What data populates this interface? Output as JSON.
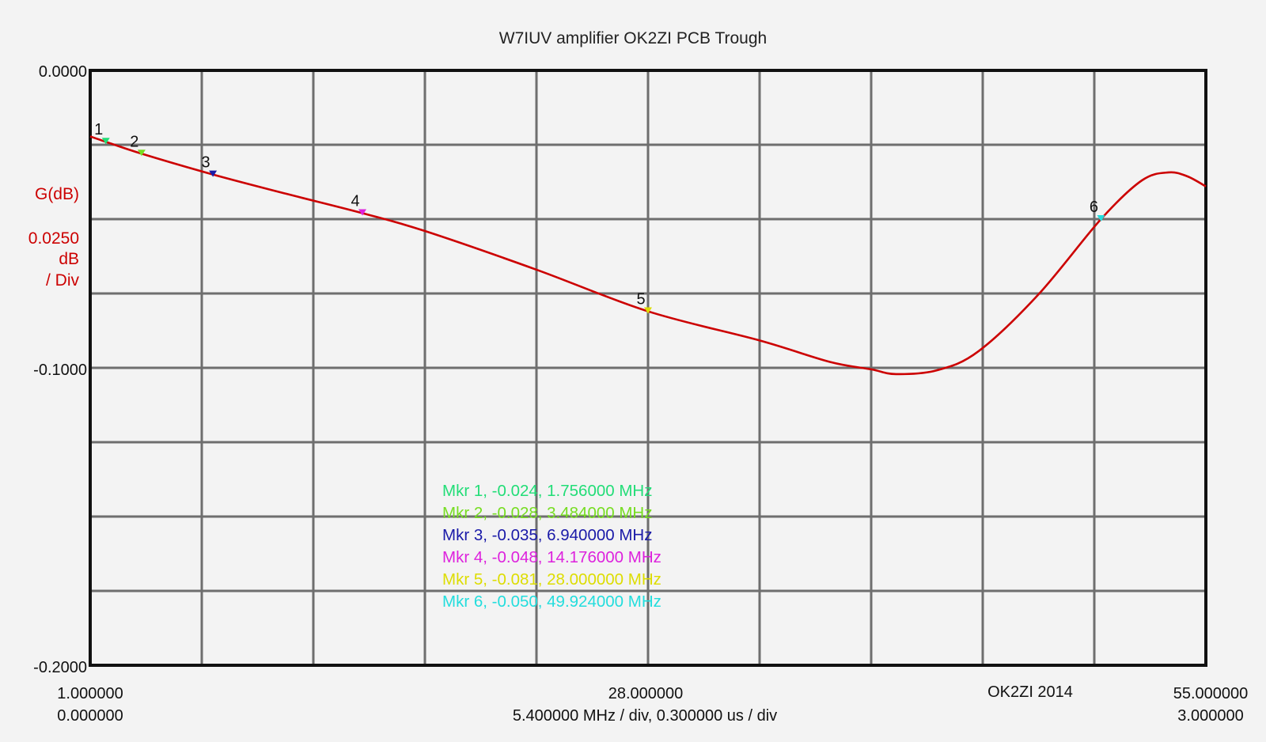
{
  "chart_data": {
    "type": "line",
    "title": "W7IUV amplifier OK2ZI PCB Trough",
    "ylabel": "G(dB)",
    "y_scale_label": [
      "0.0250",
      "dB",
      "/ Div"
    ],
    "ylim": [
      -0.2,
      0.0
    ],
    "xlim": [
      1.0,
      55.0
    ],
    "y_ticks": [
      "0.0000",
      "-0.1000",
      "-0.2000"
    ],
    "x_ticks": {
      "left": "1.000000",
      "center": "28.000000",
      "right": "55.000000"
    },
    "time_ticks": {
      "left": "0.000000",
      "right": "3.000000"
    },
    "x_scale_label": "5.400000 MHz / div, 0.300000 us / div",
    "annotation": "OK2ZI 2014",
    "grid": true,
    "x_divisions": 10,
    "y_divisions": 8,
    "trace_color": "#cc0000",
    "series": [
      {
        "x": [
          1.0,
          1.756,
          3.484,
          6.94,
          10.5,
          14.176,
          17.2,
          22.6,
          28.0,
          33.4,
          36.8,
          38.8,
          40.0,
          42.0,
          44.0,
          46.9,
          49.924,
          51.9,
          53.2,
          54.1,
          55.0
        ],
        "y": [
          -0.0222,
          -0.024,
          -0.028,
          -0.035,
          -0.0415,
          -0.048,
          -0.054,
          -0.067,
          -0.081,
          -0.0908,
          -0.098,
          -0.1005,
          -0.1021,
          -0.1008,
          -0.0944,
          -0.0753,
          -0.05,
          -0.037,
          -0.0343,
          -0.0356,
          -0.039
        ]
      }
    ],
    "markers": [
      {
        "id": "1",
        "label": "Mkr 1, -0.024, 1.756000 MHz",
        "x": 1.756,
        "y": -0.024,
        "color": "#22dd77"
      },
      {
        "id": "2",
        "label": "Mkr 2, -0.028, 3.484000 MHz",
        "x": 3.484,
        "y": -0.028,
        "color": "#77dd22"
      },
      {
        "id": "3",
        "label": "Mkr 3, -0.035, 6.940000 MHz",
        "x": 6.94,
        "y": -0.035,
        "color": "#1a1aa8"
      },
      {
        "id": "4",
        "label": "Mkr 4, -0.048, 14.176000 MHz",
        "x": 14.176,
        "y": -0.048,
        "color": "#dd22dd"
      },
      {
        "id": "5",
        "label": "Mkr 5, -0.081, 28.000000 MHz",
        "x": 28.0,
        "y": -0.081,
        "color": "#dddd00"
      },
      {
        "id": "6",
        "label": "Mkr 6, -0.050, 49.924000 MHz",
        "x": 49.924,
        "y": -0.05,
        "color": "#22dddd"
      }
    ]
  }
}
